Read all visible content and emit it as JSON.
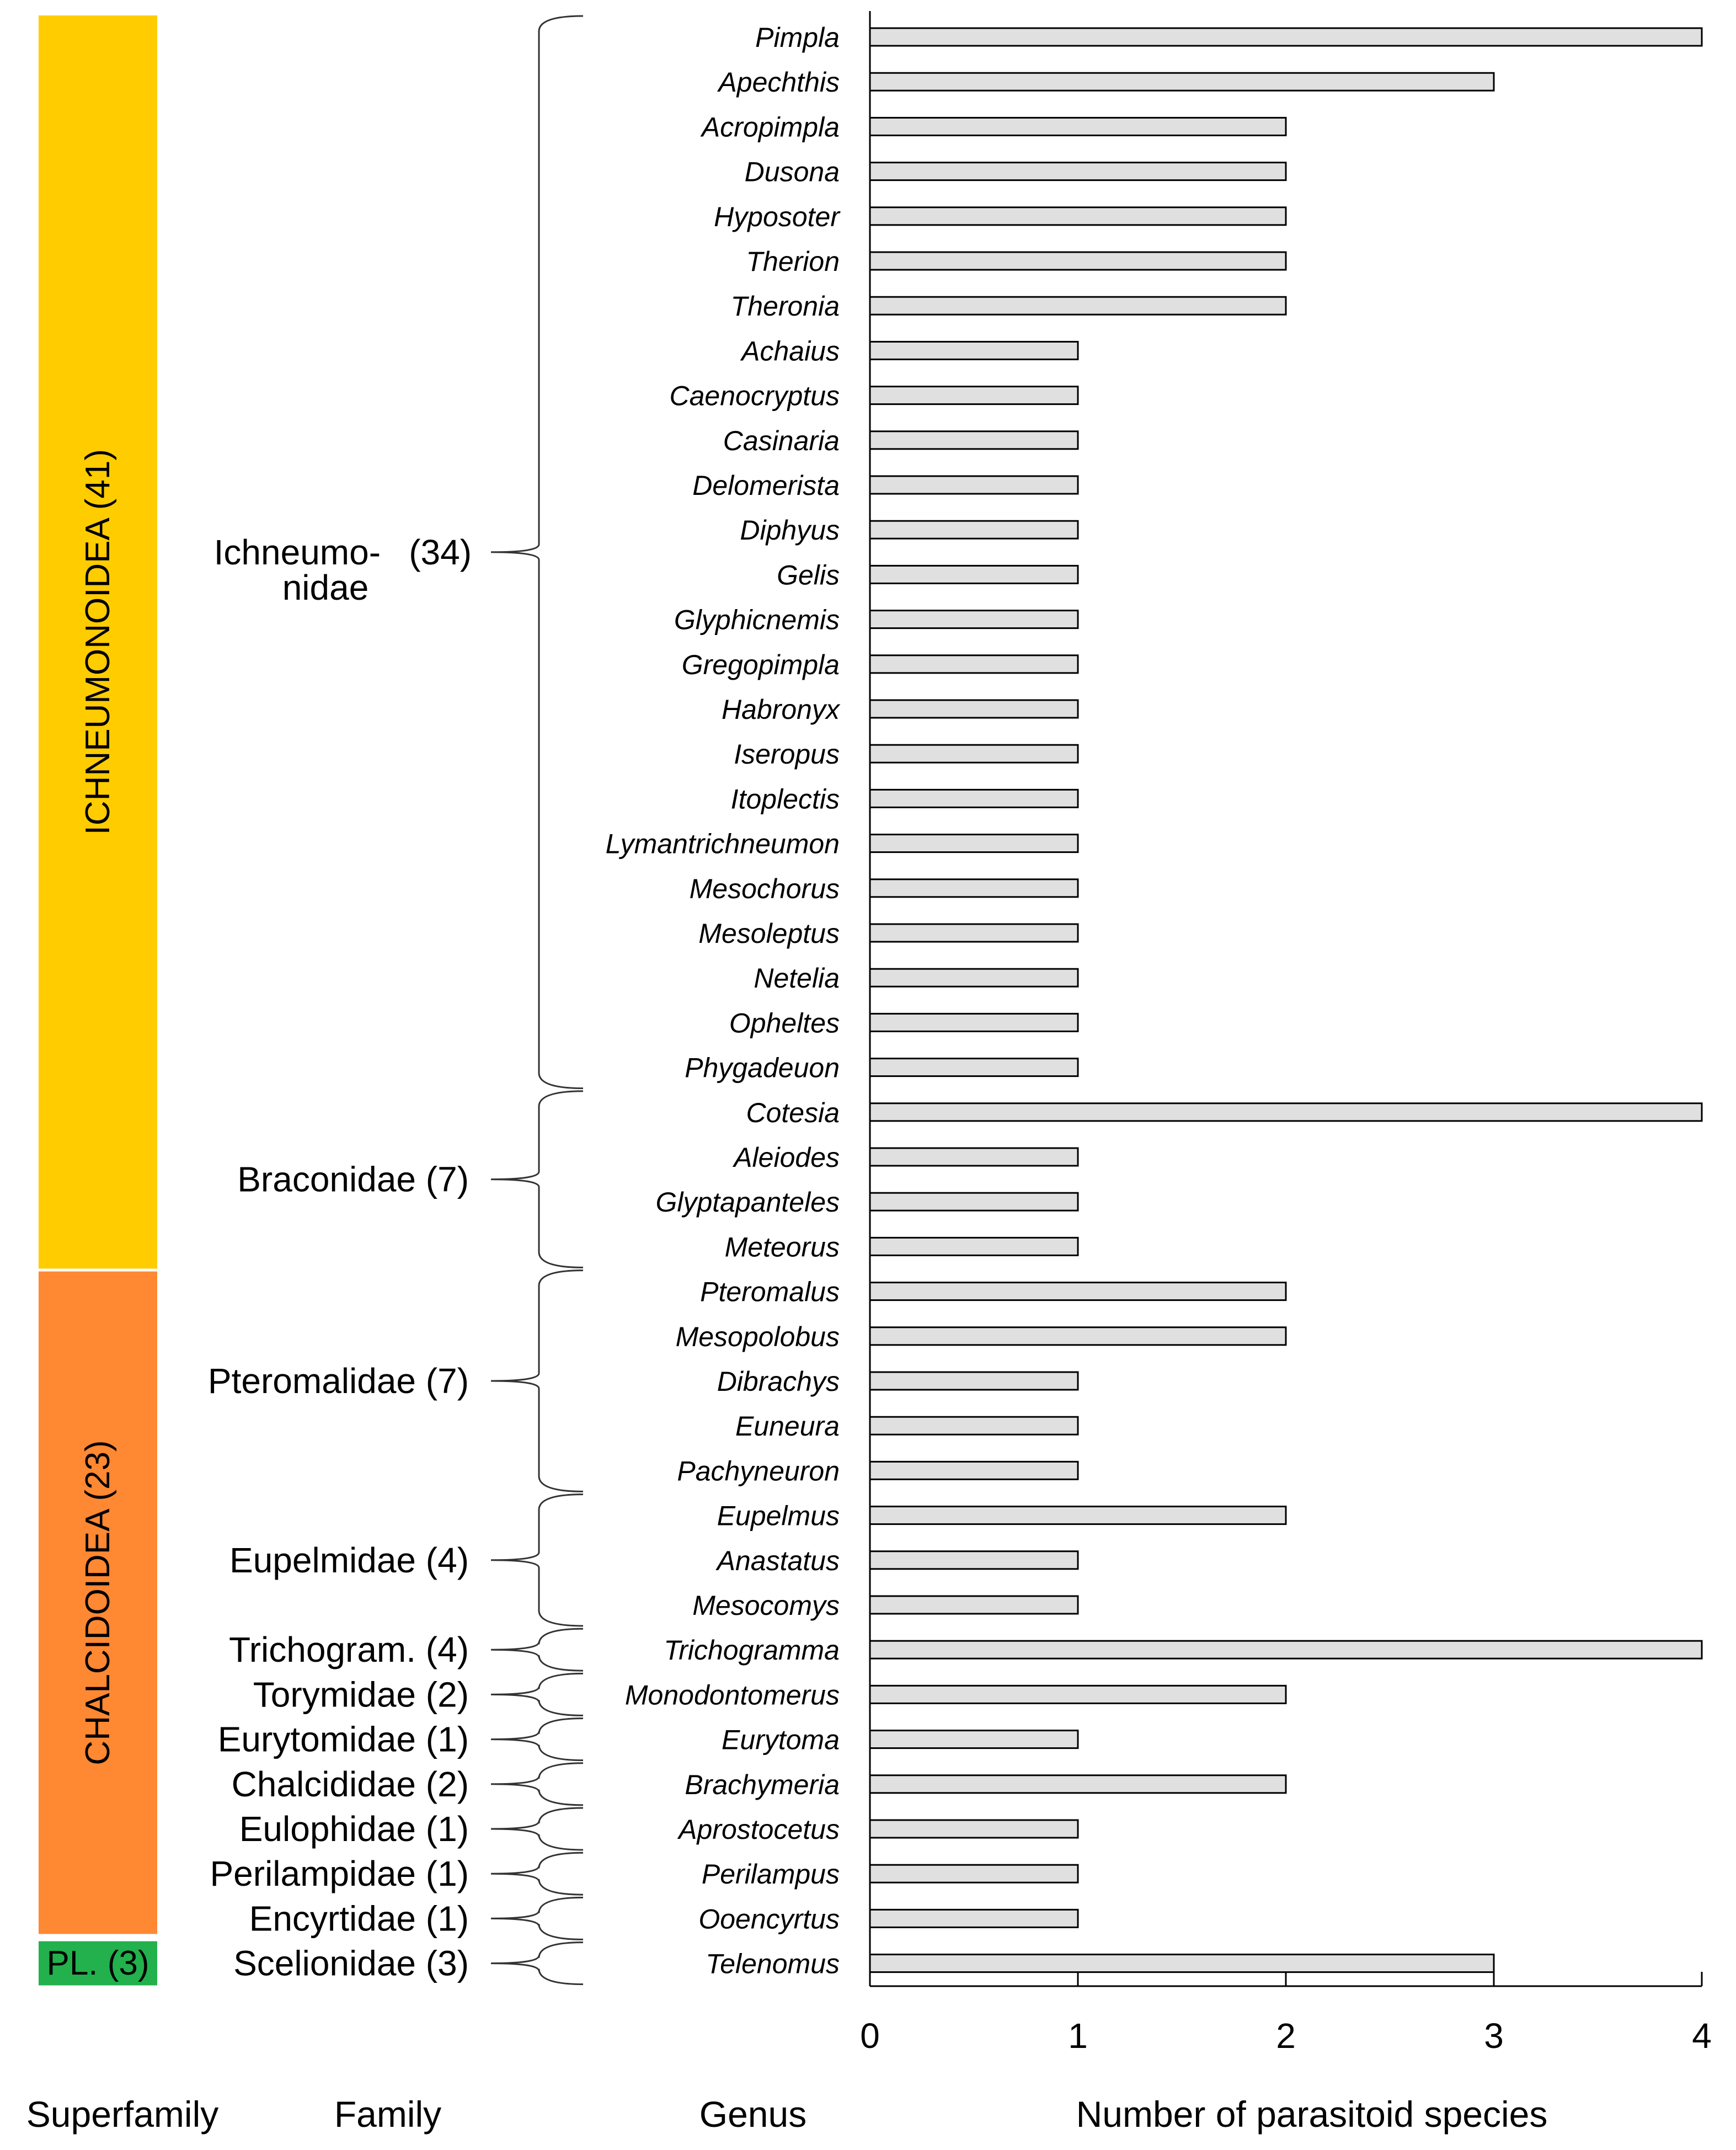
{
  "chart_data": {
    "type": "bar",
    "orientation": "horizontal",
    "xlabel": "Number of parasitoid species",
    "xlim": [
      0,
      4
    ],
    "xticks": [
      "0",
      "1",
      "2",
      "3",
      "4"
    ],
    "column_headers": {
      "superfamily": "Superfamily",
      "family": "Family",
      "genus": "Genus"
    },
    "categories": [
      "Pimpla",
      "Apechthis",
      "Acropimpla",
      "Dusona",
      "Hyposoter",
      "Therion",
      "Theronia",
      "Achaius",
      "Caenocryptus",
      "Casinaria",
      "Delomerista",
      "Diphyus",
      "Gelis",
      "Glyphicnemis",
      "Gregopimpla",
      "Habronyx",
      "Iseropus",
      "Itoplectis",
      "Lymantrichneumon",
      "Mesochorus",
      "Mesoleptus",
      "Netelia",
      "Opheltes",
      "Phygadeuon",
      "Cotesia",
      "Aleiodes",
      "Glyptapanteles",
      "Meteorus",
      "Pteromalus",
      "Mesopolobus",
      "Dibrachys",
      "Euneura",
      "Pachyneuron",
      "Eupelmus",
      "Anastatus",
      "Mesocomys",
      "Trichogramma",
      "Monodontomerus",
      "Eurytoma",
      "Brachymeria",
      "Aprostocetus",
      "Perilampus",
      "Ooencyrtus",
      "Telenomus"
    ],
    "values": [
      4,
      3,
      2,
      2,
      2,
      2,
      2,
      1,
      1,
      1,
      1,
      1,
      1,
      1,
      1,
      1,
      1,
      1,
      1,
      1,
      1,
      1,
      1,
      1,
      4,
      1,
      1,
      1,
      2,
      2,
      1,
      1,
      1,
      2,
      1,
      1,
      4,
      2,
      1,
      2,
      1,
      1,
      1,
      3
    ],
    "families": [
      {
        "label": "Ichneumo-",
        "label2": "nidae",
        "count": "(34)",
        "first": 0,
        "last": 23
      },
      {
        "label": "Braconidae (7)",
        "first": 24,
        "last": 27
      },
      {
        "label": "Pteromalidae (7)",
        "first": 28,
        "last": 32
      },
      {
        "label": "Eupelmidae (4)",
        "first": 33,
        "last": 35
      },
      {
        "label": "Trichogram. (4)",
        "first": 36,
        "last": 36
      },
      {
        "label": "Torymidae (2)",
        "first": 37,
        "last": 37
      },
      {
        "label": "Eurytomidae (1)",
        "first": 38,
        "last": 38
      },
      {
        "label": "Chalcididae (2)",
        "first": 39,
        "last": 39
      },
      {
        "label": "Eulophidae (1)",
        "first": 40,
        "last": 40
      },
      {
        "label": "Perilampidae (1)",
        "first": 41,
        "last": 41
      },
      {
        "label": "Encyrtidae (1)",
        "first": 42,
        "last": 42
      },
      {
        "label": "Scelionidae (3)",
        "first": 43,
        "last": 43
      }
    ],
    "superfamilies": [
      {
        "label": "ICHNEUMONOIDEA (41)",
        "color": "#ffcc00",
        "first": 0,
        "last": 27,
        "vertical": true
      },
      {
        "label": "CHALCIDOIDEA (23)",
        "color": "#ff8833",
        "first": 28,
        "last": 42,
        "vertical": true
      },
      {
        "label": "PL. (3)",
        "color": "#22b14c",
        "first": 43,
        "last": 43,
        "vertical": false
      }
    ],
    "bar_color": "#e0e0e0"
  }
}
